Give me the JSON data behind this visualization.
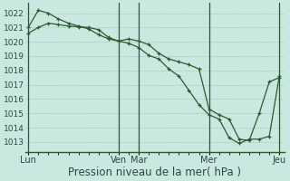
{
  "background_color": "#c8e8e0",
  "plot_bg_color": "#c8e8e0",
  "grid_major_color": "#b0d8cc",
  "grid_minor_color": "#dde8f0",
  "line_color": "#2d5a2d",
  "xlabel": "Pression niveau de la mer( hPa )",
  "xlabel_fontsize": 8.5,
  "ylim": [
    1012.3,
    1022.7
  ],
  "yticks": [
    1013,
    1014,
    1015,
    1016,
    1017,
    1018,
    1019,
    1020,
    1021,
    1022
  ],
  "ytick_fontsize": 6.5,
  "xtick_labels": [
    "Lun",
    "Ven",
    "Mar",
    "Mer",
    "Jeu"
  ],
  "xtick_positions": [
    0,
    9,
    11,
    18,
    25
  ],
  "xtick_fontsize": 7.0,
  "series1_x": [
    0,
    1,
    2,
    3,
    4,
    5,
    6,
    7,
    8,
    9,
    10,
    11,
    12,
    13,
    14,
    15,
    16,
    17,
    18,
    19,
    20,
    21,
    22,
    23,
    24,
    25
  ],
  "series1_y": [
    1021.0,
    1022.2,
    1022.0,
    1021.6,
    1021.3,
    1021.1,
    1020.9,
    1020.5,
    1020.2,
    1020.05,
    1020.2,
    1020.05,
    1019.8,
    1019.2,
    1018.8,
    1018.6,
    1018.4,
    1018.1,
    1015.3,
    1014.9,
    1014.6,
    1013.2,
    1013.1,
    1015.0,
    1017.2,
    1017.5
  ],
  "series2_x": [
    0,
    1,
    2,
    3,
    4,
    5,
    6,
    7,
    8,
    9,
    10,
    11,
    12,
    13,
    14,
    15,
    16,
    17,
    18,
    19,
    20,
    21,
    22,
    23,
    24,
    25
  ],
  "series2_y": [
    1020.6,
    1021.0,
    1021.3,
    1021.2,
    1021.1,
    1021.05,
    1021.0,
    1020.85,
    1020.3,
    1020.05,
    1019.9,
    1019.6,
    1019.05,
    1018.8,
    1018.1,
    1017.6,
    1016.6,
    1015.6,
    1014.9,
    1014.6,
    1013.3,
    1012.9,
    1013.2,
    1013.2,
    1013.4,
    1017.6
  ],
  "xlim": [
    -0.3,
    25.5
  ]
}
